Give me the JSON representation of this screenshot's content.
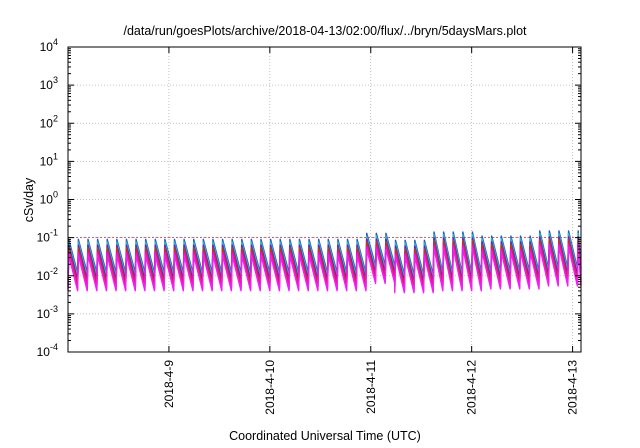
{
  "chart_data": {
    "type": "line",
    "title": "/data/run/goesPlots/archive/2018-04-13/02:00/flux/../bryn/5daysMars.plot",
    "xlabel": "Coordinated Universal Time (UTC)",
    "ylabel": "cSv/day",
    "yscale": "log",
    "ylim": [
      0.0001,
      10000
    ],
    "xlim": [
      "2018-04-08T00:00",
      "2018-04-13T02:00"
    ],
    "grid": true,
    "x_ticks": [
      "2018-4-9",
      "2018-4-10",
      "2018-4-11",
      "2018-4-12",
      "2018-4-13"
    ],
    "y_ticks": [
      {
        "base": "10",
        "exp": "-4"
      },
      {
        "base": "10",
        "exp": "-3"
      },
      {
        "base": "10",
        "exp": "-2"
      },
      {
        "base": "10",
        "exp": "-1"
      },
      {
        "base": "10",
        "exp": "0"
      },
      {
        "base": "10",
        "exp": "1"
      },
      {
        "base": "10",
        "exp": "2"
      },
      {
        "base": "10",
        "exp": "3"
      },
      {
        "base": "10",
        "exp": "4"
      }
    ],
    "reference_line": {
      "y": 0.1,
      "color": "#e03030"
    },
    "sawtooth": {
      "cycles_per_day": 10.5,
      "regimes": [
        {
          "from": "2018-04-08T00:00",
          "to": "2018-04-10T22:00",
          "peak_top": 0.09,
          "trough_bottom": 0.0045
        },
        {
          "from": "2018-04-10T22:00",
          "to": "2018-04-11T05:00",
          "peak_top": 0.13,
          "trough_bottom": 0.007
        },
        {
          "from": "2018-04-11T05:00",
          "to": "2018-04-11T14:00",
          "peak_top": 0.085,
          "trough_bottom": 0.004
        },
        {
          "from": "2018-04-11T14:00",
          "to": "2018-04-12T03:00",
          "peak_top": 0.14,
          "trough_bottom": 0.0045
        },
        {
          "from": "2018-04-12T03:00",
          "to": "2018-04-12T15:00",
          "peak_top": 0.11,
          "trough_bottom": 0.005
        },
        {
          "from": "2018-04-12T15:00",
          "to": "2018-04-13T02:00",
          "peak_top": 0.15,
          "trough_bottom": 0.006
        }
      ]
    },
    "series": [
      {
        "color": "#2255dd",
        "rel_peak": 1.0,
        "rel_trough": 2.6
      },
      {
        "color": "#20c0b0",
        "rel_peak": 0.85,
        "rel_trough": 2.2
      },
      {
        "color": "#9900cc",
        "rel_peak": 0.7,
        "rel_trough": 1.7
      },
      {
        "color": "#a05010",
        "rel_peak": 0.6,
        "rel_trough": 1.35
      },
      {
        "color": "#dd2222",
        "rel_peak": 0.52,
        "rel_trough": 1.15
      },
      {
        "color": "#ff00ff",
        "rel_peak": 0.45,
        "rel_trough": 1.0
      },
      {
        "color": "#ee22ee",
        "rel_peak": 0.38,
        "rel_trough": 0.9
      }
    ]
  }
}
